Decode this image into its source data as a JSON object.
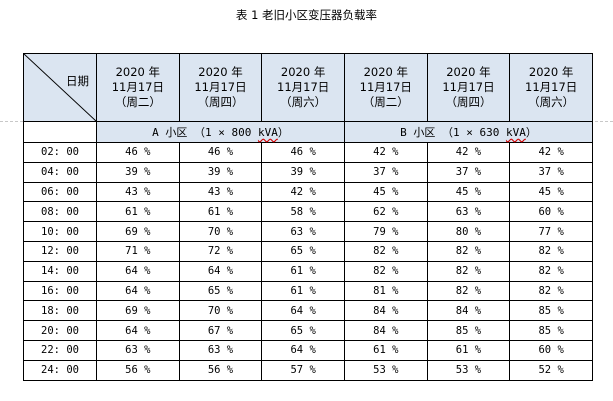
{
  "caption": "表 1 老旧小区变压器负载率",
  "corner_label": "日期",
  "date_headers": [
    {
      "year": "2020 年",
      "date": "11月17日",
      "weekday": "（周二）"
    },
    {
      "year": "2020 年",
      "date": "11月17日",
      "weekday": "（周四）"
    },
    {
      "year": "2020 年",
      "date": "11月17日",
      "weekday": "（周六）"
    },
    {
      "year": "2020 年",
      "date": "11月17日",
      "weekday": "（周二）"
    },
    {
      "year": "2020 年",
      "date": "11月17日",
      "weekday": "（周四）"
    },
    {
      "year": "2020 年",
      "date": "11月17日",
      "weekday": "（周六）"
    }
  ],
  "groups": [
    {
      "prefix": "A 小区 （1 × 800 ",
      "unit": "kVA",
      "suffix": "）"
    },
    {
      "prefix": "B 小区 （1 × 630 ",
      "unit": "kVA",
      "suffix": "）"
    }
  ],
  "rows": [
    {
      "time": "02: 00",
      "values": [
        "46 %",
        "46 %",
        "46 %",
        "42 %",
        "42 %",
        "42 %"
      ]
    },
    {
      "time": "04: 00",
      "values": [
        "39 %",
        "39 %",
        "39 %",
        "37 %",
        "37 %",
        "37 %"
      ]
    },
    {
      "time": "06: 00",
      "values": [
        "43 %",
        "43 %",
        "42 %",
        "45 %",
        "45 %",
        "45 %"
      ]
    },
    {
      "time": "08: 00",
      "values": [
        "61 %",
        "61 %",
        "58 %",
        "62 %",
        "63 %",
        "60 %"
      ]
    },
    {
      "time": "10: 00",
      "values": [
        "69 %",
        "70 %",
        "63 %",
        "79 %",
        "80 %",
        "77 %"
      ]
    },
    {
      "time": "12: 00",
      "values": [
        "71 %",
        "72 %",
        "65 %",
        "82 %",
        "82 %",
        "82 %"
      ]
    },
    {
      "time": "14: 00",
      "values": [
        "64 %",
        "64 %",
        "61 %",
        "82 %",
        "82 %",
        "82 %"
      ]
    },
    {
      "time": "16: 00",
      "values": [
        "64 %",
        "65 %",
        "61 %",
        "81 %",
        "82 %",
        "82 %"
      ]
    },
    {
      "time": "18: 00",
      "values": [
        "69 %",
        "70 %",
        "64 %",
        "84 %",
        "84 %",
        "85 %"
      ]
    },
    {
      "time": "20: 00",
      "values": [
        "64 %",
        "67 %",
        "65 %",
        "84 %",
        "85 %",
        "85 %"
      ]
    },
    {
      "time": "22: 00",
      "values": [
        "63 %",
        "63 %",
        "64 %",
        "61 %",
        "61 %",
        "60 %"
      ]
    },
    {
      "time": "24: 00",
      "values": [
        "56 %",
        "56 %",
        "57 %",
        "53 %",
        "53 %",
        "52 %"
      ]
    }
  ]
}
